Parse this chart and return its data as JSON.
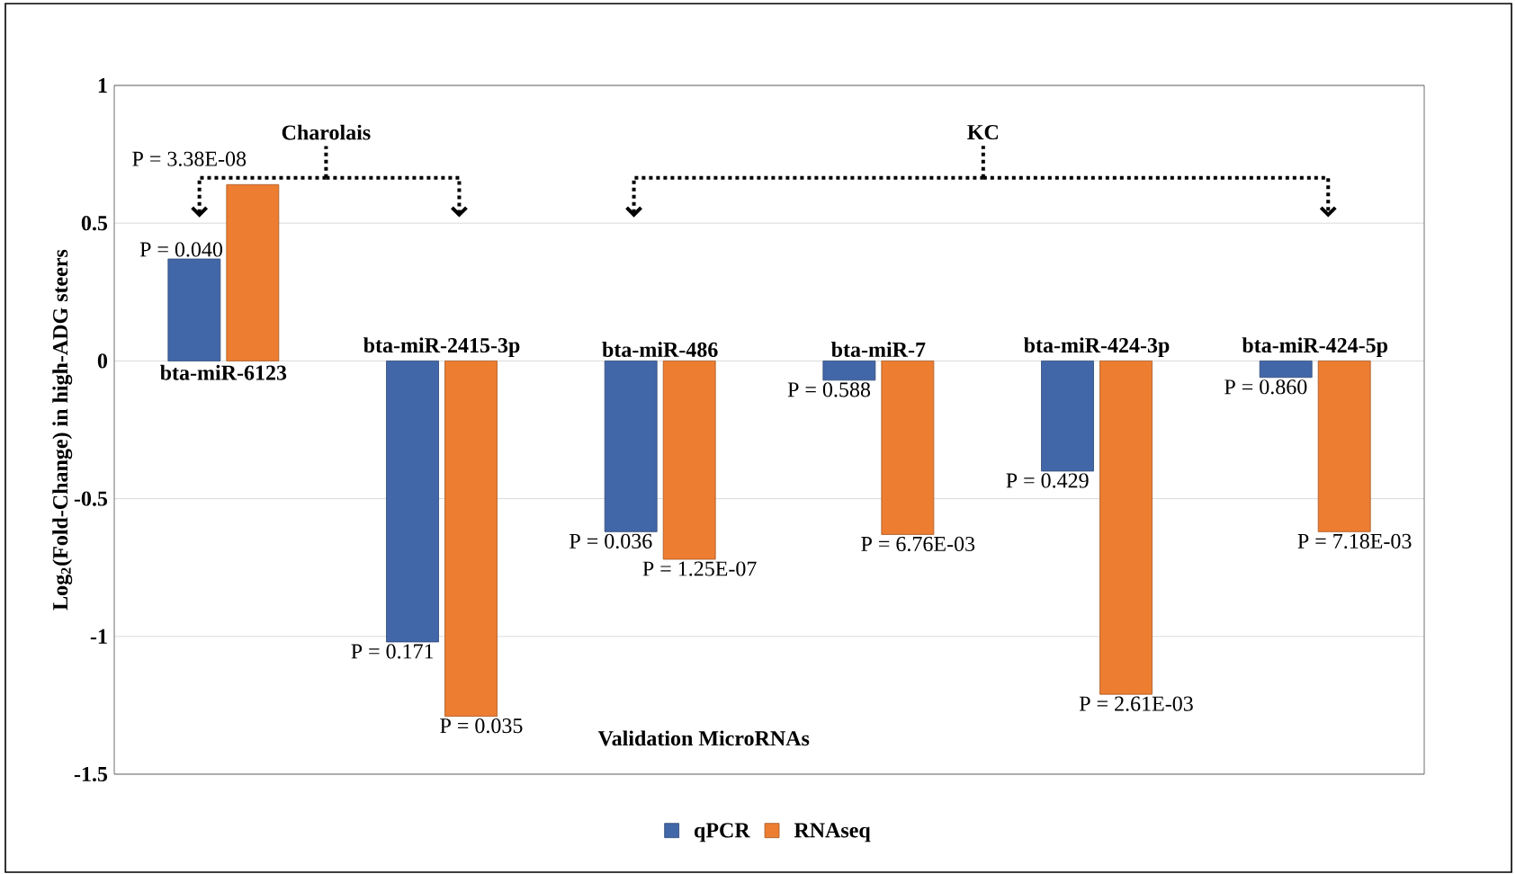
{
  "chart_data": {
    "type": "bar",
    "xlabel": "Validation MicroRNAs",
    "ylabel": "Log$_{2}$(Fold-Change) in high-ADG steers",
    "categories": [
      "bta-miR-6123",
      "bta-miR-2415-3p",
      "bta-miR-486",
      "bta-miR-7",
      "bta-miR-424-3p",
      "bta-miR-424-5p"
    ],
    "series": [
      {
        "name": "qPCR",
        "color": "#4267a8",
        "values": [
          0.37,
          -1.02,
          -0.62,
          -0.07,
          -0.4,
          -0.06
        ]
      },
      {
        "name": "RNAseq",
        "color": "#ed7d31",
        "values": [
          0.64,
          -1.29,
          -0.72,
          -0.63,
          -1.21,
          -0.62
        ]
      }
    ],
    "ylim": [
      -1.5,
      1
    ],
    "yticks": [
      -1.5,
      -1,
      -0.5,
      0,
      0.5,
      1
    ],
    "grid": "y",
    "legend": "bottom",
    "annotations": [
      "Charolais",
      "KC",
      {
        "text": "P = 0.040",
        "x": "bta-miR-6123",
        "y": 0.37
      },
      {
        "text": "P = 0.171",
        "x": "bta-miR-2415-3p",
        "y": -1.02
      },
      {
        "text": "P = 0.036",
        "x": "bta-miR-486",
        "y": -0.62
      },
      {
        "text": "P = 0.588",
        "x": "bta-miR-7",
        "y": -0.07
      },
      {
        "text": "P = 0.429",
        "x": "bta-miR-424-3p",
        "y": -0.4
      },
      {
        "text": "P = 0.860",
        "x": "bta-miR-424-5p",
        "y": -0.06
      },
      {
        "text": "P = 3.38E-08",
        "x": "bta-miR-6123",
        "y": 0.64
      },
      {
        "text": "P = 0.035",
        "x": "bta-miR-2415-3p",
        "y": -1.29
      },
      {
        "text": "P = 1.25E-07",
        "x": "bta-miR-486",
        "y": -0.72
      },
      {
        "text": "P = 6.76E-03",
        "x": "bta-miR-7",
        "y": -0.63
      },
      {
        "text": "P = 2.61E-03",
        "x": "bta-miR-424-3p",
        "y": -1.21
      },
      {
        "text": "P = 7.18E-03",
        "x": "bta-miR-424-5p",
        "y": -0.62
      }
    ]
  }
}
